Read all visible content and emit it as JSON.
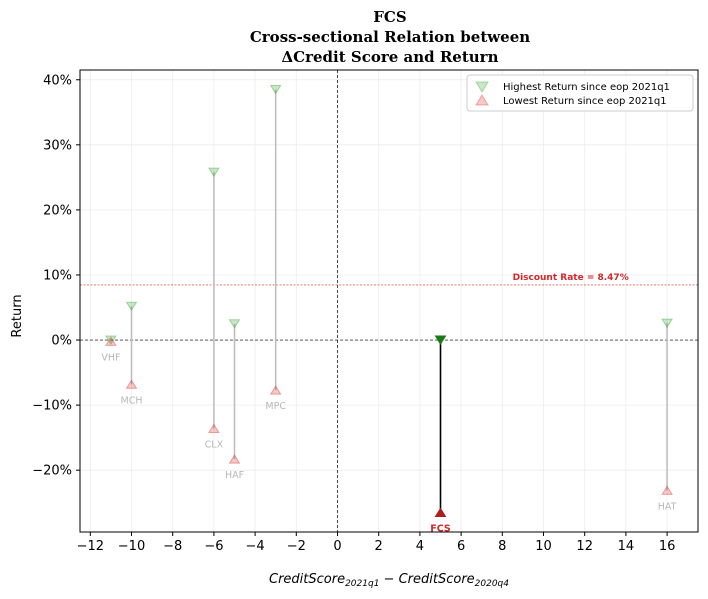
{
  "chart_data": {
    "type": "scatter",
    "title_lines": [
      "FCS",
      "Cross-sectional Relation between",
      "ΔCredit Score and Return"
    ],
    "xlabel": "CreditScore",
    "xlabel_sub1": "2021q1",
    "xlabel_mid": " − CreditScore",
    "xlabel_sub2": "2020q4",
    "ylabel": "Return",
    "xlim": [
      -12.5,
      17.5
    ],
    "ylim": [
      -0.295,
      0.415
    ],
    "xticks": [
      -12,
      -10,
      -8,
      -6,
      -4,
      -2,
      0,
      2,
      4,
      6,
      8,
      10,
      12,
      14,
      16
    ],
    "yticks": [
      -0.2,
      -0.1,
      0.0,
      0.1,
      0.2,
      0.3,
      0.4
    ],
    "ytick_labels": [
      "−20%",
      "−10%",
      "0%",
      "10%",
      "20%",
      "30%",
      "40%"
    ],
    "xtick_labels": [
      "−12",
      "−10",
      "−8",
      "−6",
      "−4",
      "−2",
      "0",
      "2",
      "4",
      "6",
      "8",
      "10",
      "12",
      "14",
      "16"
    ],
    "grid": true,
    "discount_rate": 0.0847,
    "discount_label": "Discount Rate = 8.47%",
    "legend": {
      "position": "top-right",
      "entries": [
        "Highest Return since eop 2021q1",
        "Lowest Return since eop 2021q1"
      ]
    },
    "colors": {
      "high": "#2ca02c",
      "low": "#d62728",
      "peer_line": "#bfbfbf",
      "highlight_line": "#000000"
    },
    "points": [
      {
        "ticker": "VHF",
        "x": -11,
        "high": 0.0,
        "low": -0.002,
        "highlight": false
      },
      {
        "ticker": "MCH",
        "x": -10,
        "high": 0.052,
        "low": -0.068,
        "highlight": false
      },
      {
        "ticker": "CLX",
        "x": -6,
        "high": 0.258,
        "low": -0.136,
        "highlight": false
      },
      {
        "ticker": "HAF",
        "x": -5,
        "high": 0.025,
        "low": -0.183,
        "highlight": false
      },
      {
        "ticker": "MPC",
        "x": -3,
        "high": 0.385,
        "low": -0.077,
        "highlight": false
      },
      {
        "ticker": "FCS",
        "x": 5,
        "high": 0.0,
        "low": -0.265,
        "highlight": true
      },
      {
        "ticker": "HAT",
        "x": 16,
        "high": 0.026,
        "low": -0.231,
        "highlight": false
      }
    ]
  }
}
